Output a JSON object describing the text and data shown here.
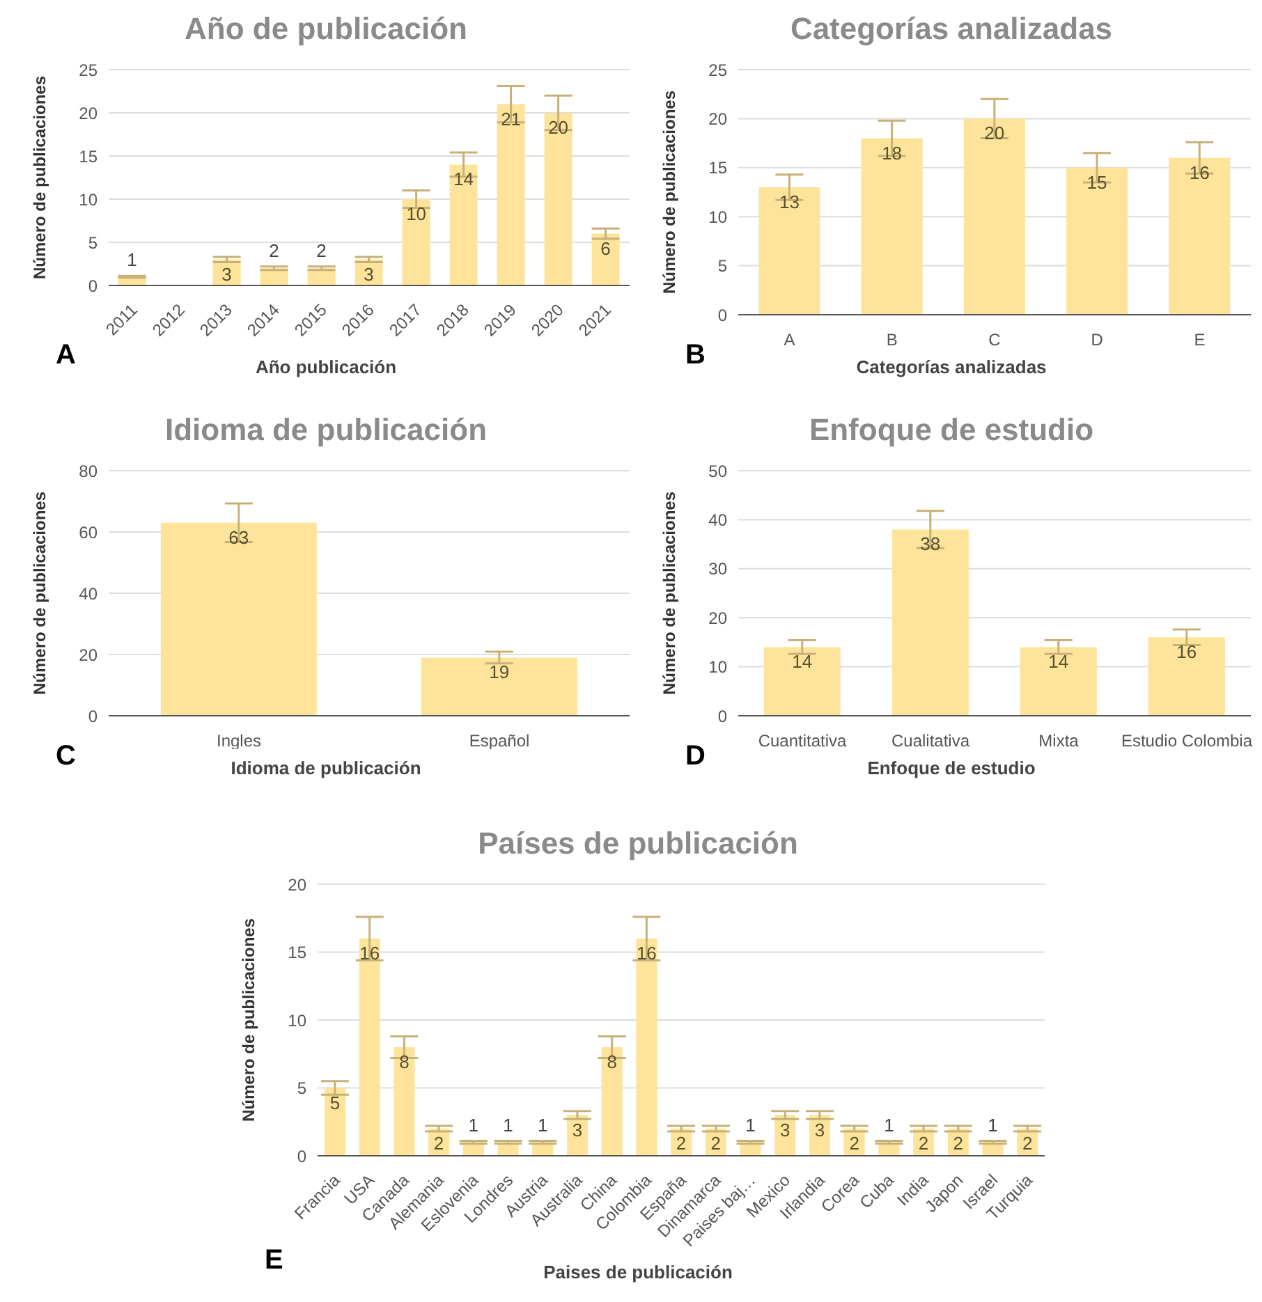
{
  "chart_data": [
    {
      "type": "bar",
      "title": "Año de publicación",
      "xlabel": "Año publicación",
      "ylabel": "Número de publicaciones",
      "categories": [
        "2011",
        "2012",
        "2013",
        "2014",
        "2015",
        "2016",
        "2017",
        "2018",
        "2019",
        "2020",
        "2021"
      ],
      "values": [
        1,
        0,
        3,
        2,
        2,
        3,
        10,
        14,
        21,
        20,
        6
      ],
      "errors": [
        0.1,
        null,
        0.3,
        0.2,
        0.2,
        0.3,
        1,
        1.4,
        2.1,
        2,
        0.6
      ],
      "value_labels": [
        "1",
        null,
        "3",
        "2",
        "2",
        "3",
        "10",
        "14",
        "21",
        "20",
        "6"
      ],
      "color": "#fde49a",
      "ylim": [
        0,
        25
      ],
      "yticks": [
        0,
        5,
        10,
        15,
        20,
        25
      ],
      "grid": "y",
      "annotations": [
        "A"
      ]
    },
    {
      "type": "bar",
      "title": "Categorías analizadas",
      "xlabel": "Categorías analizadas",
      "ylabel": "Número de publicaciones",
      "categories": [
        "A",
        "B",
        "C",
        "D",
        "E"
      ],
      "values": [
        13,
        18,
        20,
        15,
        16
      ],
      "errors": [
        1.3,
        1.8,
        2,
        1.5,
        1.6
      ],
      "data_labels": true,
      "color": "#fde49a",
      "ylim": [
        0,
        25
      ],
      "yticks": [
        0,
        5,
        10,
        15,
        20,
        25
      ],
      "grid": "y",
      "annotations": [
        "B"
      ]
    },
    {
      "type": "bar",
      "title": "Idioma de publicación",
      "xlabel": "Idioma de publicación",
      "ylabel": "Número de publicaciones",
      "categories": [
        "Ingles",
        "Español"
      ],
      "values": [
        63,
        19
      ],
      "errors": [
        6.3,
        1.9
      ],
      "data_labels": true,
      "color": "#fde49a",
      "ylim": [
        0,
        80
      ],
      "yticks": [
        0,
        20,
        40,
        60,
        80
      ],
      "grid": "y",
      "annotations": [
        "C"
      ]
    },
    {
      "type": "bar",
      "title": "Enfoque de estudio",
      "xlabel": "Enfoque de estudio",
      "ylabel": "Número de publicaciones",
      "categories": [
        "Cuantitativa",
        "Cualitativa",
        "Mixta",
        "Estudio Colombia"
      ],
      "values": [
        14,
        38,
        14,
        16
      ],
      "errors": [
        1.4,
        3.8,
        1.4,
        1.6
      ],
      "data_labels": true,
      "color": "#fde49a",
      "ylim": [
        0,
        50
      ],
      "yticks": [
        0,
        10,
        20,
        30,
        40,
        50
      ],
      "grid": "y",
      "annotations": [
        "D"
      ]
    },
    {
      "type": "bar",
      "title": "Países de publicación",
      "xlabel": "Paises de publicación",
      "ylabel": "Número de publicaciones",
      "categories": [
        "Francia",
        "USA",
        "Canada",
        "Alemania",
        "Eslovenia",
        "Londres",
        "Austria",
        "Australia",
        "China",
        "Colombia",
        "España",
        "Dinamarca",
        "Paises baj…",
        "Mexico",
        "Irlandia",
        "Corea",
        "Cuba",
        "India",
        "Japon",
        "Israel",
        "Turquia"
      ],
      "values": [
        5,
        16,
        8,
        2,
        1,
        1,
        1,
        3,
        8,
        16,
        2,
        2,
        1,
        3,
        3,
        2,
        1,
        2,
        2,
        1,
        2
      ],
      "errors": [
        0.5,
        1.6,
        0.8,
        0.2,
        0.1,
        0.1,
        0.1,
        0.3,
        0.8,
        1.6,
        0.2,
        0.2,
        0.1,
        0.3,
        0.3,
        0.2,
        0.1,
        0.2,
        0.2,
        0.1,
        0.2
      ],
      "data_labels": true,
      "color": "#fde49a",
      "ylim": [
        0,
        20
      ],
      "yticks": [
        0,
        5,
        10,
        15,
        20
      ],
      "grid": "y",
      "annotations": [
        "E"
      ]
    }
  ]
}
